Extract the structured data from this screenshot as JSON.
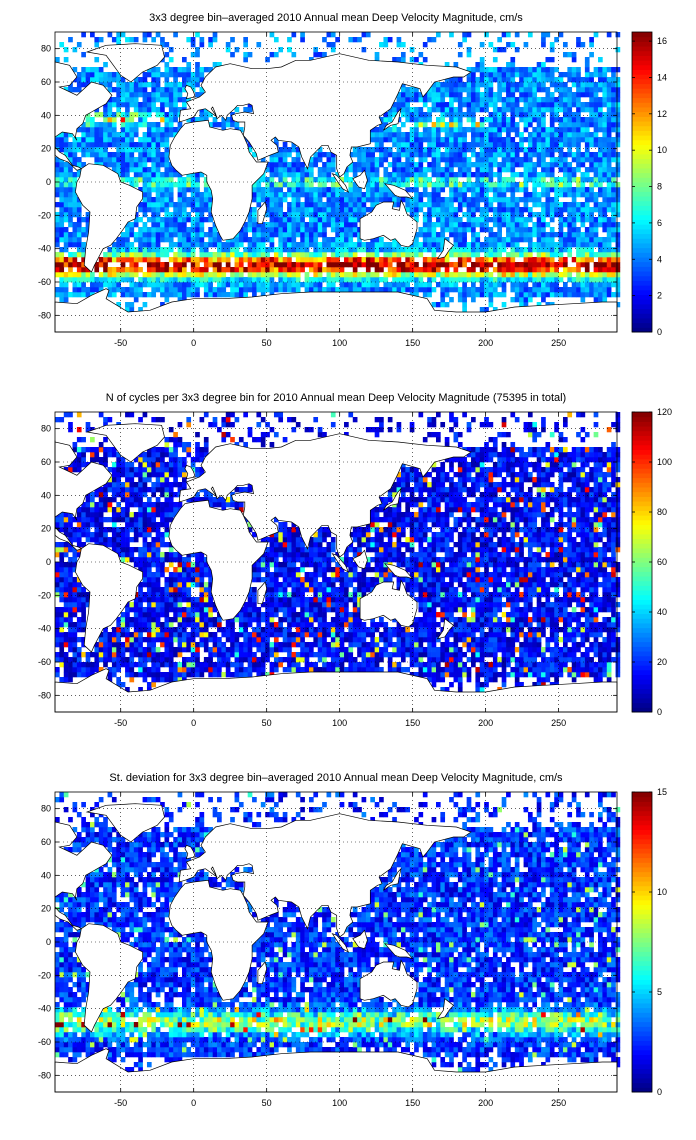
{
  "colormap": "jet",
  "axes_common": {
    "xlim": [
      -95,
      290
    ],
    "ylim": [
      -90,
      90
    ],
    "xticks": [
      -50,
      0,
      50,
      100,
      150,
      200,
      250
    ],
    "yticks": [
      80,
      60,
      40,
      20,
      0,
      -20,
      -40,
      -60,
      -80
    ],
    "xtick_labels": [
      "-50",
      "0",
      "50",
      "100",
      "150",
      "200",
      "250"
    ],
    "ytick_labels": [
      "80",
      "60",
      "40",
      "20",
      "0",
      "-20",
      "-40",
      "-60",
      "-80"
    ],
    "grid": "dotted"
  },
  "chart_data": [
    {
      "type": "heatmap",
      "title": "3x3 degree bin–averaged 2010 Annual mean Deep Velocity Magnitude, cm/s",
      "xlabel": "",
      "ylabel": "",
      "colorbar": {
        "range": [
          0,
          16.5
        ],
        "ticks": [
          0,
          2,
          4,
          6,
          8,
          10,
          12,
          14,
          16
        ],
        "tick_labels": [
          "0",
          "2",
          "4",
          "6",
          "8",
          "10",
          "12",
          "14",
          "16"
        ]
      },
      "bins": "3x3 degree ocean bins; strongest values (~14-16 cm/s) along the Southern Ocean (~-45 to -55 lat), Gulf Stream (~40 lat) and Kuroshio (~35 lat); weaker (~2-6 cm/s) in ocean interiors"
    },
    {
      "type": "heatmap",
      "title": "N of cycles per 3x3 degree bin for 2010 Annual mean Deep Velocity Magnitude (75395 in total)",
      "xlabel": "",
      "ylabel": "",
      "colorbar": {
        "range": [
          0,
          120
        ],
        "ticks": [
          0,
          20,
          40,
          60,
          80,
          100,
          120
        ],
        "tick_labels": [
          "0",
          "20",
          "40",
          "60",
          "80",
          "100",
          "120"
        ]
      },
      "bins": "3x3 degree ocean bins; mostly 5-30 cycles with scattered bins of 60-100"
    },
    {
      "type": "heatmap",
      "title": "St. deviation for 3x3 degree bin–averaged 2010 Annual mean Deep Velocity Magnitude, cm/s",
      "xlabel": "",
      "ylabel": "",
      "colorbar": {
        "range": [
          0,
          15
        ],
        "ticks": [
          0,
          5,
          10,
          15
        ],
        "tick_labels": [
          "0",
          "5",
          "10",
          "15"
        ]
      },
      "bins": "3x3 degree ocean bins; higher variability (~6-9) along the Southern Ocean belt, mostly 1-4 elsewhere"
    }
  ]
}
